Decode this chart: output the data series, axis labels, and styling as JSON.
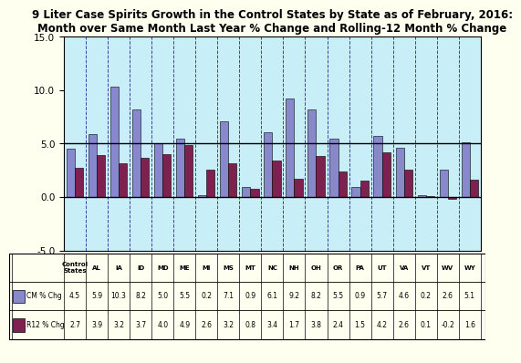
{
  "title": "9 Liter Case Spirits Growth in the Control States by State as of February, 2016:\nMonth over Same Month Last Year % Change and Rolling-12 Month % Change",
  "categories": [
    "Control\nStates",
    "AL",
    "IA",
    "ID",
    "MD",
    "ME",
    "MI",
    "MS",
    "MT",
    "NC",
    "NH",
    "OH",
    "OR",
    "PA",
    "UT",
    "VA",
    "VT",
    "WV",
    "WY"
  ],
  "cm_chg": [
    4.5,
    5.9,
    10.3,
    8.2,
    5.0,
    5.5,
    0.2,
    7.1,
    0.9,
    6.1,
    9.2,
    8.2,
    5.5,
    0.9,
    5.7,
    4.6,
    0.2,
    2.6,
    5.1
  ],
  "r12_chg": [
    2.7,
    3.9,
    3.2,
    3.7,
    4.0,
    4.9,
    2.6,
    3.2,
    0.8,
    3.4,
    1.7,
    3.8,
    2.4,
    1.5,
    4.2,
    2.6,
    0.1,
    -0.2,
    1.6
  ],
  "cm_color": "#8888cc",
  "r12_color": "#802050",
  "bg_outer": "#fffff0",
  "bg_plot": "#c8eef8",
  "ylim": [
    -5.0,
    15.0
  ],
  "yticks": [
    -5.0,
    0.0,
    5.0,
    10.0,
    15.0
  ],
  "legend_cm": "CM % Chg",
  "legend_r12": "R12 % Chg",
  "vgrid_color": "#4040a0",
  "hline_color": "#000000",
  "title_fontsize": 8.5,
  "bar_width": 0.38
}
